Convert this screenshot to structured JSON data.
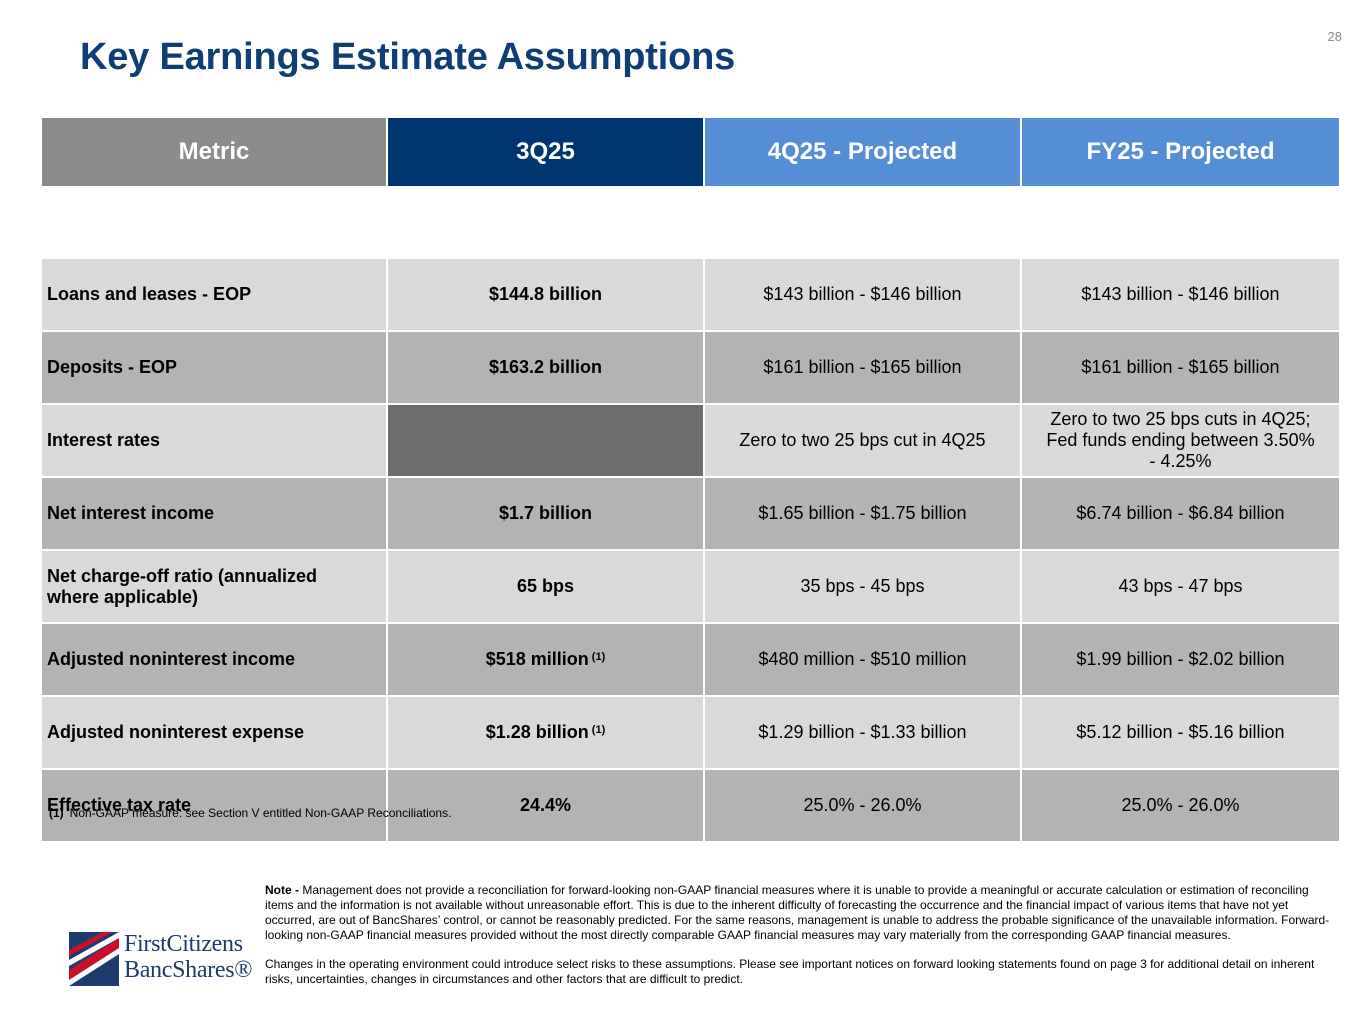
{
  "page": {
    "title": "Key Earnings Estimate Assumptions",
    "page_number": "28"
  },
  "table": {
    "headers": [
      "Metric",
      "3Q25",
      "4Q25 - Projected",
      "FY25 - Projected"
    ],
    "rows": [
      {
        "metric": "Loans and leases - EOP",
        "q3": "$144.8 billion",
        "q3_note": "",
        "q4": "$143 billion - $146 billion",
        "fy": "$143 billion - $146 billion"
      },
      {
        "metric": "Deposits - EOP",
        "q3": "$163.2 billion",
        "q3_note": "",
        "q4": "$161 billion - $165 billion",
        "fy": "$161 billion - $165 billion"
      },
      {
        "metric": "Interest rates",
        "q3": "",
        "q3_note": "",
        "q4": "Zero to two 25 bps cut in 4Q25",
        "fy": "Zero to two 25 bps cuts in 4Q25; Fed funds ending between 3.50% - 4.25%"
      },
      {
        "metric": "Net interest income",
        "q3": "$1.7 billion",
        "q3_note": "",
        "q4": "$1.65 billion - $1.75 billion",
        "fy": "$6.74 billion - $6.84 billion"
      },
      {
        "metric": "Net charge-off ratio (annualized where applicable)",
        "q3": "65 bps",
        "q3_note": "",
        "q4": "35 bps - 45 bps",
        "fy": "43 bps - 47 bps"
      },
      {
        "metric": "Adjusted noninterest income",
        "q3": "$518 million",
        "q3_note": "(1)",
        "q4": "$480 million - $510 million",
        "fy": "$1.99 billion - $2.02 billion"
      },
      {
        "metric": "Adjusted noninterest expense",
        "q3": "$1.28 billion",
        "q3_note": "(1)",
        "q4": "$1.29 billion - $1.33 billion",
        "fy": "$5.12 billion - $5.16 billion"
      },
      {
        "metric": "Effective tax rate",
        "q3": "24.4%",
        "q3_note": "",
        "q4": "25.0% - 26.0%",
        "fy": "25.0% - 26.0%"
      }
    ]
  },
  "footnote": {
    "marker": "(1)",
    "text": "Non-GAAP measure: see Section V entitled Non-GAAP Reconciliations."
  },
  "note": {
    "label": "Note -",
    "text1": "Management does not provide a reconciliation for forward-looking non-GAAP financial measures where it is unable to provide a meaningful or accurate calculation or estimation of reconciling items and the information is not available without unreasonable effort. This is due to the inherent difficulty of forecasting the occurrence and the financial impact of various items that have not yet occurred, are out of BancShares’ control, or cannot be reasonably predicted.  For the same reasons, management is unable to address the probable significance of the unavailable information.  Forward-looking non-GAAP financial measures provided without the most directly comparable GAAP financial measures may vary materially from the corresponding GAAP financial measures.",
    "text2": "Changes in the operating environment could introduce select risks to these assumptions. Please see important notices on forward looking statements found on page 3 for additional detail on inherent risks, uncertainties, changes in circumstances and other factors that are difficult to predict."
  },
  "logo": {
    "line1": "FirstCitizens",
    "line2": "BancShares®"
  },
  "colors": {
    "title": "#0f3d76",
    "header_metric": "#8c8c8c",
    "header_3q25": "#003670",
    "header_projected": "#558ed5",
    "row_light": "#d9d9d9",
    "row_dark": "#b3b3b3",
    "blank_cell": "#6d6d6d"
  }
}
